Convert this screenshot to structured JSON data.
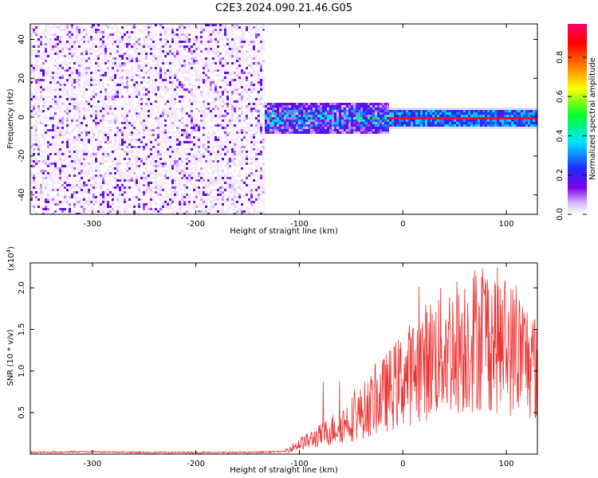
{
  "figure": {
    "title": "C2E3.2024.090.21.46.G05"
  },
  "chart_data": [
    {
      "type": "heatmap",
      "title": "C2E3.2024.090.21.46.G05",
      "xlabel": "Height of straight line (km)",
      "ylabel": "Frequency (Hz)",
      "xlim": [
        -360,
        130
      ],
      "ylim": [
        -50,
        48
      ],
      "x_ticks": [
        -300,
        -200,
        -100,
        0,
        100
      ],
      "y_ticks": [
        -40,
        -20,
        0,
        20,
        40
      ],
      "colorbar": {
        "label": "Normalized spectral amplitude",
        "range": [
          0,
          0.97
        ],
        "ticks": [
          0.0,
          0.2,
          0.4,
          0.6,
          0.8
        ],
        "colormap": [
          "#ffffff",
          "#d9b8ff",
          "#7a00e6",
          "#1f2bff",
          "#00e5ff",
          "#00ff2a",
          "#ffff00",
          "#ff7a00",
          "#ff0000",
          "#ff0066"
        ]
      },
      "regions": [
        {
          "x": [
            -360,
            -135
          ],
          "freq_range": [
            -50,
            48
          ],
          "amplitude": [
            0.02,
            0.25
          ],
          "pattern": "noise"
        },
        {
          "x": [
            -140,
            -15
          ],
          "freq_center": 0,
          "freq_halfwidth": 8,
          "amplitude": [
            0.1,
            0.45
          ],
          "pattern": "broad band"
        },
        {
          "x": [
            -15,
            130
          ],
          "freq_center": 0,
          "freq_halfwidth": 2,
          "amplitude": [
            0.3,
            0.97
          ],
          "pattern": "narrow line"
        }
      ],
      "grid": false
    },
    {
      "type": "line",
      "xlabel": "Height of straight line (km)",
      "ylabel": "SNR (10 * v/v)",
      "y_multiplier": "(x10^4)",
      "y_multiplier_base": "(x10",
      "y_multiplier_exp": "4",
      "y_multiplier_close": ")",
      "xlim": [
        -360,
        130
      ],
      "ylim": [
        0,
        2.3
      ],
      "x_ticks": [
        -300,
        -200,
        -100,
        0,
        100
      ],
      "y_ticks": [
        0.5,
        1.0,
        1.5,
        2.0
      ],
      "y_tick_labels": [
        "0.5",
        "1.0",
        "1.5",
        "2.0"
      ],
      "series": [
        {
          "color": "#ee3333",
          "x": [
            -360,
            -300,
            -250,
            -200,
            -150,
            -115,
            -100,
            -80,
            -60,
            -40,
            -20,
            0,
            20,
            40,
            60,
            80,
            100,
            115,
            125,
            130
          ],
          "y": [
            0.02,
            0.03,
            0.02,
            0.02,
            0.02,
            0.03,
            0.12,
            0.22,
            0.35,
            0.5,
            0.7,
            0.9,
            1.1,
            1.25,
            1.35,
            1.45,
            1.3,
            1.2,
            1.1,
            1.0
          ]
        }
      ],
      "grid": false
    }
  ]
}
